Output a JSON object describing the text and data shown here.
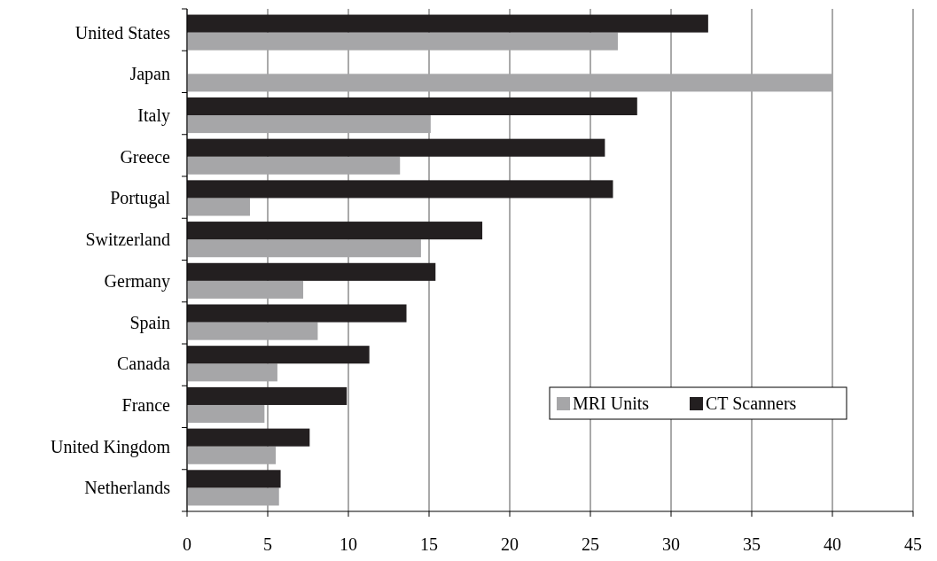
{
  "chart_data": {
    "type": "bar",
    "orientation": "horizontal",
    "categories": [
      "United States",
      "Japan",
      "Italy",
      "Greece",
      "Portugal",
      "Switzerland",
      "Germany",
      "Spain",
      "Canada",
      "France",
      "United Kingdom",
      "Netherlands"
    ],
    "series": [
      {
        "name": "MRI Units",
        "color": "#a6a6a8",
        "values": [
          26.7,
          40,
          15.1,
          13.2,
          3.9,
          14.5,
          7.2,
          8.1,
          5.6,
          4.8,
          5.5,
          5.7
        ]
      },
      {
        "name": "CT Scanners",
        "color": "#231f20",
        "values": [
          32.3,
          null,
          27.9,
          25.9,
          26.4,
          18.3,
          15.4,
          13.6,
          11.3,
          9.9,
          7.6,
          5.8
        ]
      }
    ],
    "xlim": [
      0,
      45
    ],
    "xticks": [
      0,
      5,
      10,
      15,
      20,
      25,
      30,
      35,
      40,
      45
    ],
    "grid": "x",
    "legend": "right"
  }
}
